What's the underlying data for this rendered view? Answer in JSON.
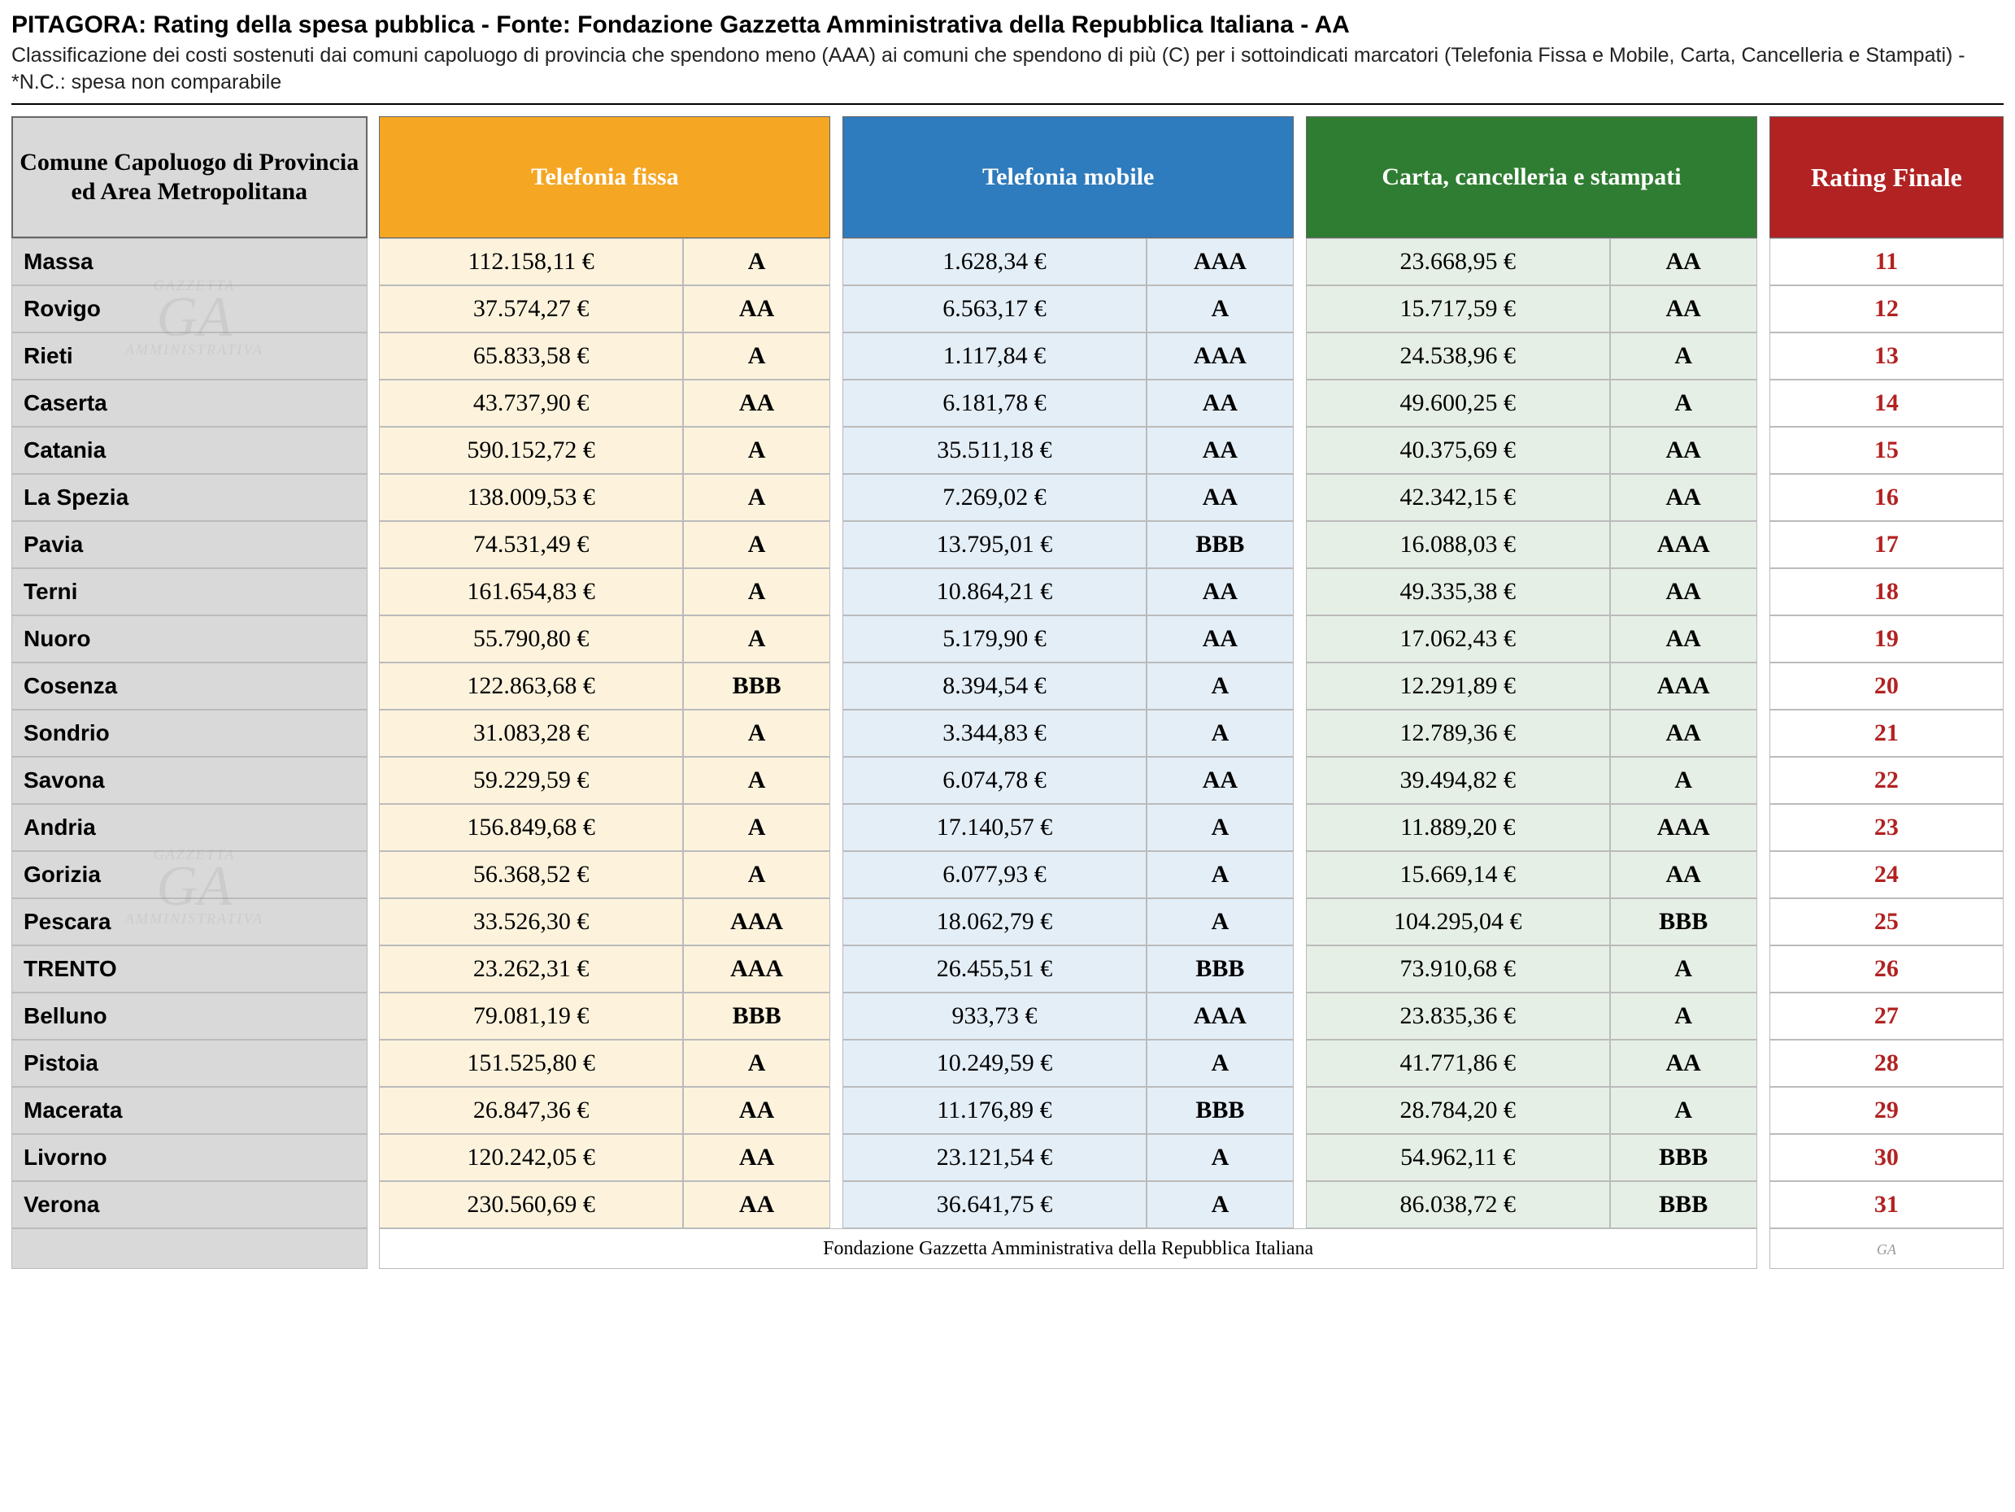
{
  "title": "PITAGORA: Rating della spesa pubblica - Fonte: Fondazione Gazzetta Amministrativa della Repubblica Italiana - AA",
  "subtitle": "Classificazione dei costi sostenuti dai comuni capoluogo di provincia che spendono meno (AAA) ai comuni che spendono di più (C) per i sottoindicati marcatori (Telefonia Fissa e Mobile, Carta, Cancelleria e Stampati) - *N.C.: spesa non comparabile",
  "columns": {
    "comune": "Comune Capoluogo di Provincia ed Area Metropolitana",
    "col1": "Telefonia fissa",
    "col2": "Telefonia mobile",
    "col3": "Carta, cancelleria e stampati",
    "final": "Rating Finale"
  },
  "footer": "Fondazione Gazzetta Amministrativa della Repubblica Italiana",
  "footer_logo": "GA",
  "colors": {
    "header_grey": "#d9d9d9",
    "orange": "#f5a623",
    "blue": "#2e7bbd",
    "green": "#2f7d32",
    "red": "#b22222",
    "tint_orange": "#fdf3dd",
    "tint_blue": "#e4eef7",
    "tint_green": "#e6efe6"
  },
  "rows": [
    {
      "comune": "Massa",
      "v1": "112.158,11 €",
      "r1": "A",
      "v2": "1.628,34 €",
      "r2": "AAA",
      "v3": "23.668,95 €",
      "r3": "AA",
      "final": "11"
    },
    {
      "comune": "Rovigo",
      "v1": "37.574,27 €",
      "r1": "AA",
      "v2": "6.563,17 €",
      "r2": "A",
      "v3": "15.717,59 €",
      "r3": "AA",
      "final": "12"
    },
    {
      "comune": "Rieti",
      "v1": "65.833,58 €",
      "r1": "A",
      "v2": "1.117,84 €",
      "r2": "AAA",
      "v3": "24.538,96 €",
      "r3": "A",
      "final": "13"
    },
    {
      "comune": "Caserta",
      "v1": "43.737,90 €",
      "r1": "AA",
      "v2": "6.181,78 €",
      "r2": "AA",
      "v3": "49.600,25 €",
      "r3": "A",
      "final": "14"
    },
    {
      "comune": "Catania",
      "v1": "590.152,72 €",
      "r1": "A",
      "v2": "35.511,18 €",
      "r2": "AA",
      "v3": "40.375,69 €",
      "r3": "AA",
      "final": "15"
    },
    {
      "comune": "La Spezia",
      "v1": "138.009,53 €",
      "r1": "A",
      "v2": "7.269,02 €",
      "r2": "AA",
      "v3": "42.342,15 €",
      "r3": "AA",
      "final": "16"
    },
    {
      "comune": "Pavia",
      "v1": "74.531,49 €",
      "r1": "A",
      "v2": "13.795,01 €",
      "r2": "BBB",
      "v3": "16.088,03 €",
      "r3": "AAA",
      "final": "17"
    },
    {
      "comune": "Terni",
      "v1": "161.654,83 €",
      "r1": "A",
      "v2": "10.864,21 €",
      "r2": "AA",
      "v3": "49.335,38 €",
      "r3": "AA",
      "final": "18"
    },
    {
      "comune": "Nuoro",
      "v1": "55.790,80 €",
      "r1": "A",
      "v2": "5.179,90 €",
      "r2": "AA",
      "v3": "17.062,43 €",
      "r3": "AA",
      "final": "19"
    },
    {
      "comune": "Cosenza",
      "v1": "122.863,68 €",
      "r1": "BBB",
      "v2": "8.394,54 €",
      "r2": "A",
      "v3": "12.291,89 €",
      "r3": "AAA",
      "final": "20"
    },
    {
      "comune": "Sondrio",
      "v1": "31.083,28 €",
      "r1": "A",
      "v2": "3.344,83 €",
      "r2": "A",
      "v3": "12.789,36 €",
      "r3": "AA",
      "final": "21"
    },
    {
      "comune": "Savona",
      "v1": "59.229,59 €",
      "r1": "A",
      "v2": "6.074,78 €",
      "r2": "AA",
      "v3": "39.494,82 €",
      "r3": "A",
      "final": "22"
    },
    {
      "comune": "Andria",
      "v1": "156.849,68 €",
      "r1": "A",
      "v2": "17.140,57 €",
      "r2": "A",
      "v3": "11.889,20 €",
      "r3": "AAA",
      "final": "23"
    },
    {
      "comune": "Gorizia",
      "v1": "56.368,52 €",
      "r1": "A",
      "v2": "6.077,93 €",
      "r2": "A",
      "v3": "15.669,14 €",
      "r3": "AA",
      "final": "24"
    },
    {
      "comune": "Pescara",
      "v1": "33.526,30 €",
      "r1": "AAA",
      "v2": "18.062,79 €",
      "r2": "A",
      "v3": "104.295,04 €",
      "r3": "BBB",
      "final": "25"
    },
    {
      "comune": "TRENTO",
      "v1": "23.262,31 €",
      "r1": "AAA",
      "v2": "26.455,51 €",
      "r2": "BBB",
      "v3": "73.910,68 €",
      "r3": "A",
      "final": "26"
    },
    {
      "comune": "Belluno",
      "v1": "79.081,19 €",
      "r1": "BBB",
      "v2": "933,73 €",
      "r2": "AAA",
      "v3": "23.835,36 €",
      "r3": "A",
      "final": "27"
    },
    {
      "comune": "Pistoia",
      "v1": "151.525,80 €",
      "r1": "A",
      "v2": "10.249,59 €",
      "r2": "A",
      "v3": "41.771,86 €",
      "r3": "AA",
      "final": "28"
    },
    {
      "comune": "Macerata",
      "v1": "26.847,36 €",
      "r1": "AA",
      "v2": "11.176,89 €",
      "r2": "BBB",
      "v3": "28.784,20 €",
      "r3": "A",
      "final": "29"
    },
    {
      "comune": "Livorno",
      "v1": "120.242,05 €",
      "r1": "AA",
      "v2": "23.121,54 €",
      "r2": "A",
      "v3": "54.962,11 €",
      "r3": "BBB",
      "final": "30"
    },
    {
      "comune": "Verona",
      "v1": "230.560,69 €",
      "r1": "AA",
      "v2": "36.641,75 €",
      "r2": "A",
      "v3": "86.038,72 €",
      "r3": "BBB",
      "final": "31"
    }
  ]
}
